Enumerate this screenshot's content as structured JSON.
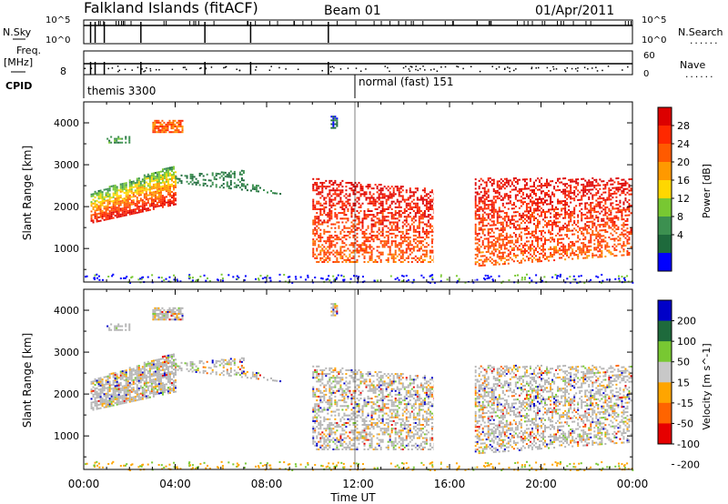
{
  "header": {
    "station": "Falkland Islands (fitACF)",
    "beam": "Beam 01",
    "date": "01/Apr/2011"
  },
  "side_labels": {
    "nsky": "N.Sky",
    "nsky_top": "10^5",
    "nsky_bottom": "10^0",
    "freq_line1": "Freq.",
    "freq_line2": "[MHz]",
    "freq_top": "8",
    "cpid": "CPID",
    "nsearch": "N.Search",
    "nsearch_top": "10^5",
    "nsearch_bottom": "10^0",
    "nave": "Nave",
    "nave_top": "60",
    "nave_bottom": "0",
    "dots": "......"
  },
  "cpid_labels": {
    "left": "themis 3300",
    "right": "normal (fast) 151"
  },
  "colors": {
    "power_scale": [
      "#0000ff",
      "#1e6a3c",
      "#3c9050",
      "#78c832",
      "#ffd700",
      "#ff9900",
      "#ff5a00",
      "#ff2800",
      "#dc0000"
    ],
    "velocity_scale": [
      "#0000c8",
      "#1e6a3c",
      "#78c832",
      "#c8c8c8",
      "#ffa500",
      "#ff6400",
      "#e60000"
    ],
    "ground_scatter": "#b4b4b4"
  },
  "chart_data": [
    {
      "type": "heatmap",
      "name": "power",
      "ylabel": "Slant Range [km]",
      "y_ticks": [
        "1000",
        "2000",
        "3000",
        "4000"
      ],
      "ylim": [
        200,
        4500
      ],
      "xlim": [
        0,
        24
      ],
      "colorbar_label": "Power [dB]",
      "colorbar_ticks": [
        "4",
        "8",
        "12",
        "16",
        "20",
        "24",
        "28"
      ]
    },
    {
      "type": "heatmap",
      "name": "velocity",
      "ylabel": "Slant Range [km]",
      "y_ticks": [
        "1000",
        "2000",
        "3000",
        "4000"
      ],
      "ylim": [
        200,
        4500
      ],
      "xlim": [
        0,
        24
      ],
      "xlabel": "Time UT",
      "x_ticks": [
        "00:00",
        "04:00",
        "08:00",
        "12:00",
        "16:00",
        "20:00",
        "00:00"
      ],
      "colorbar_label": "Velocity [m s^-1]",
      "colorbar_ticks": [
        "200",
        "100",
        "50",
        "15",
        "-15",
        "-50",
        "-100",
        "-200"
      ]
    }
  ]
}
